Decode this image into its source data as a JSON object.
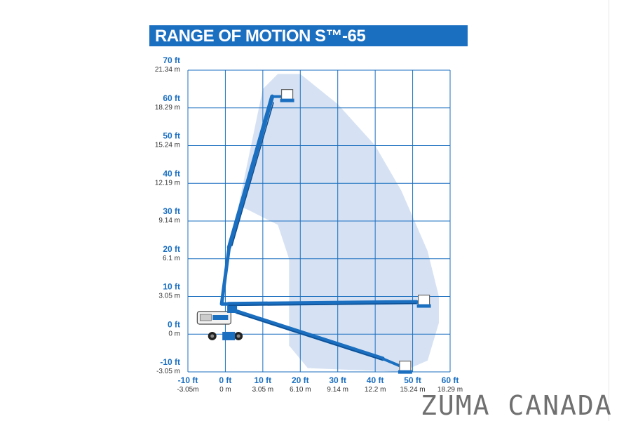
{
  "title": "RANGE OF MOTION S™-65",
  "colors": {
    "brand_blue": "#1b6fc0",
    "envelope_fill": "#d6e2f3",
    "grid": "#1b6fc0",
    "boom": "#1b6fc0"
  },
  "chart_data": {
    "type": "range-of-motion-diagram",
    "x_axis": {
      "unit_primary": "ft",
      "range_ft": [
        -10,
        60
      ],
      "ticks": [
        {
          "value": -10,
          "ft": "-10 ft",
          "m": "-3.05m"
        },
        {
          "value": 0,
          "ft": "0 ft",
          "m": "0 m"
        },
        {
          "value": 10,
          "ft": "10 ft",
          "m": "3.05 m"
        },
        {
          "value": 20,
          "ft": "20 ft",
          "m": "6.10 m"
        },
        {
          "value": 30,
          "ft": "30 ft",
          "m": "9.14 m"
        },
        {
          "value": 40,
          "ft": "40 ft",
          "m": "12.2 m"
        },
        {
          "value": 50,
          "ft": "50 ft",
          "m": "15.24 m"
        },
        {
          "value": 60,
          "ft": "60 ft",
          "m": "18.29 m"
        }
      ]
    },
    "y_axis": {
      "unit_primary": "ft",
      "range_ft": [
        -10,
        70
      ],
      "ticks": [
        {
          "value": 70,
          "ft": "70 ft",
          "m": "21.34 m"
        },
        {
          "value": 60,
          "ft": "60 ft",
          "m": "18.29 m"
        },
        {
          "value": 50,
          "ft": "50 ft",
          "m": "15.24 m"
        },
        {
          "value": 40,
          "ft": "40 ft",
          "m": "12.19 m"
        },
        {
          "value": 30,
          "ft": "30 ft",
          "m": "9.14 m"
        },
        {
          "value": 20,
          "ft": "20 ft",
          "m": "6.1 m"
        },
        {
          "value": 10,
          "ft": "10 ft",
          "m": "3.05 m"
        },
        {
          "value": 0,
          "ft": "0 ft",
          "m": "0 m"
        },
        {
          "value": -10,
          "ft": "-10 ft",
          "m": "-3.05 m"
        }
      ]
    },
    "grid": true,
    "working_envelope_ft": [
      [
        3.5,
        34
      ],
      [
        10,
        65
      ],
      [
        14,
        69
      ],
      [
        20,
        69
      ],
      [
        30,
        61
      ],
      [
        40,
        50
      ],
      [
        47,
        38
      ],
      [
        54,
        22
      ],
      [
        57,
        10
      ],
      [
        57,
        3
      ],
      [
        54,
        -7
      ],
      [
        47,
        -10
      ],
      [
        22,
        -9
      ],
      [
        17,
        -3
      ],
      [
        17,
        20
      ],
      [
        14,
        29
      ],
      [
        6,
        33
      ]
    ],
    "boom_positions_ft": [
      {
        "name": "max height",
        "turret": [
          0.8,
          8
        ],
        "elbow": [
          -1,
          8
        ],
        "riser_top": [
          1,
          23
        ],
        "tip": [
          12.5,
          63
        ],
        "platform": [
          16.5,
          63
        ]
      },
      {
        "name": "max horizontal reach",
        "turret": [
          0.8,
          8
        ],
        "tip": [
          51,
          8.5
        ],
        "platform": [
          53,
          8.5
        ]
      },
      {
        "name": "below grade",
        "turret": [
          3,
          6
        ],
        "tip": [
          42,
          -6.5
        ],
        "platform": [
          48,
          -9
        ]
      }
    ]
  },
  "watermark": "ZUMA CANADA"
}
